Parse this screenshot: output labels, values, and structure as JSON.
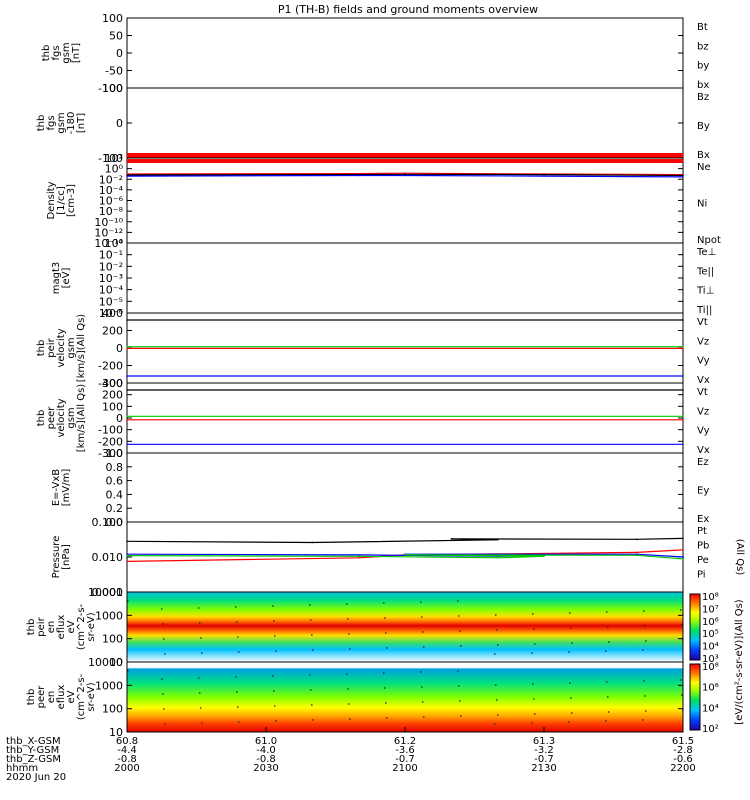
{
  "title": "P1 (TH-B) fields and ground moments overview",
  "x_axis": {
    "ticks": [
      "2000",
      "2030",
      "2100",
      "2130",
      "2200"
    ],
    "rows": [
      {
        "label": "thb_X-GSM",
        "values": [
          "60.8",
          "61.0",
          "61.2",
          "61.3",
          "61.5"
        ]
      },
      {
        "label": "thb_Y-GSM",
        "values": [
          "-4.4",
          "-4.0",
          "-3.6",
          "-3.2",
          "-2.8"
        ]
      },
      {
        "label": "thb_Z-GSM",
        "values": [
          "-0.8",
          "-0.8",
          "-0.7",
          "-0.7",
          "-0.6"
        ]
      },
      {
        "label": "hhmm",
        "values": [
          "2000",
          "2030",
          "2100",
          "2130",
          "2200"
        ]
      }
    ],
    "date": "2020 Jun 20"
  },
  "chart_data": [
    {
      "type": "line",
      "ylabel": [
        "thb",
        "fgs",
        "gsm",
        "[nT]"
      ],
      "yticks": [
        "100",
        "50",
        "0",
        "-50",
        "-100"
      ],
      "ylim": [
        -100,
        100
      ],
      "legend": [
        {
          "name": "Bt",
          "color": "#000000"
        },
        {
          "name": "bz",
          "color": "#ff0000"
        },
        {
          "name": "by",
          "color": "#00cc00"
        },
        {
          "name": "bx",
          "color": "#0000ff"
        }
      ],
      "series": []
    },
    {
      "type": "line",
      "ylabel": [
        "thb",
        "fgs",
        "gsm",
        "-180",
        "[nT]"
      ],
      "yticks": [
        "100",
        "0",
        "-100"
      ],
      "ylim": [
        -140,
        100
      ],
      "legend": [
        {
          "name": "Bz",
          "color": "#ff0000"
        },
        {
          "name": "By",
          "color": "#00cc00"
        },
        {
          "name": "Bx",
          "color": "#0000ff"
        }
      ],
      "series": []
    },
    {
      "type": "line",
      "ylabel": [
        "Density",
        "[1/cc]",
        "[cm-3]"
      ],
      "log": true,
      "yticks": [
        "10²",
        "10⁰",
        "10⁻²",
        "10⁻⁴",
        "10⁻⁶",
        "10⁻⁸",
        "10⁻¹⁰",
        "10⁻¹²",
        "10⁻¹⁴"
      ],
      "ylim_exp": [
        -15,
        3
      ],
      "legend": [
        {
          "name": "Ne",
          "color": "#ff0000"
        },
        {
          "name": "Ni",
          "color": "#000000"
        },
        {
          "name": "Npot",
          "color": "#0000ff"
        }
      ],
      "series": [
        {
          "name": "Ne",
          "color": "#ff0000",
          "x": [
            2000,
            2050,
            2100,
            2130,
            2200
          ],
          "y": [
            0.4,
            0.5,
            0.6,
            0.4,
            0.3
          ]
        },
        {
          "name": "Ni",
          "color": "#000000",
          "x": [
            2000,
            2050,
            2100,
            2130,
            2200
          ],
          "y": [
            0.25,
            0.3,
            0.35,
            0.3,
            0.2
          ]
        },
        {
          "name": "Npot",
          "color": "#0000ff",
          "x": [
            2000,
            2050,
            2100,
            2130,
            2200
          ],
          "y": [
            0.15,
            0.2,
            0.2,
            0.15,
            0.1
          ]
        }
      ]
    },
    {
      "type": "line",
      "ylabel": [
        "magt3",
        "[eV]"
      ],
      "log": true,
      "yticks": [
        "10⁰",
        "10⁻¹",
        "10⁻²",
        "10⁻³",
        "10⁻⁴",
        "10⁻⁵",
        "10⁻⁶"
      ],
      "ylim_exp": [
        -6.5,
        0
      ],
      "legend": [
        {
          "name": "Te⊥",
          "color": "#ff0000"
        },
        {
          "name": "Te||",
          "color": "#000000"
        },
        {
          "name": "Ti⊥",
          "color": "#0000ff"
        },
        {
          "name": "Ti||",
          "color": "#00cc00"
        }
      ],
      "series": []
    },
    {
      "type": "line",
      "ylabel": [
        "thb",
        "peir",
        "velocity",
        "gsm",
        "[km/s](All Qs)"
      ],
      "yticks": [
        "400",
        "200",
        "0",
        "-200",
        "-400"
      ],
      "ylim": [
        -400,
        400
      ],
      "legend": [
        {
          "name": "Vt",
          "color": "#000000"
        },
        {
          "name": "Vz",
          "color": "#ff0000"
        },
        {
          "name": "Vy",
          "color": "#00cc00"
        },
        {
          "name": "Vx",
          "color": "#0000ff"
        }
      ],
      "series": [
        {
          "name": "Vt",
          "color": "#000000",
          "x": [
            2000,
            2200
          ],
          "y": [
            320,
            320
          ]
        },
        {
          "name": "Vy",
          "color": "#00cc00",
          "x": [
            2000,
            2200
          ],
          "y": [
            15,
            15
          ]
        },
        {
          "name": "Vz",
          "color": "#ff0000",
          "x": [
            2000,
            2200
          ],
          "y": [
            -5,
            -5
          ]
        },
        {
          "name": "Vx",
          "color": "#0000ff",
          "x": [
            2000,
            2200
          ],
          "y": [
            -320,
            -320
          ]
        }
      ]
    },
    {
      "type": "line",
      "ylabel": [
        "thb",
        "peer",
        "velocity",
        "gsm",
        "[km/s](All Qs)"
      ],
      "yticks": [
        "300",
        "200",
        "100",
        "0",
        "-100",
        "-200",
        "-300"
      ],
      "ylim": [
        -300,
        300
      ],
      "legend": [
        {
          "name": "Vt",
          "color": "#000000"
        },
        {
          "name": "Vz",
          "color": "#ff0000"
        },
        {
          "name": "Vy",
          "color": "#00cc00"
        },
        {
          "name": "Vx",
          "color": "#0000ff"
        }
      ],
      "series": [
        {
          "name": "Vt",
          "color": "#000000",
          "x": [
            2000,
            2200
          ],
          "y": [
            240,
            240
          ]
        },
        {
          "name": "Vy",
          "color": "#00cc00",
          "x": [
            2000,
            2200
          ],
          "y": [
            15,
            15
          ]
        },
        {
          "name": "Vz",
          "color": "#ff0000",
          "x": [
            2000,
            2200
          ],
          "y": [
            -15,
            -15
          ]
        },
        {
          "name": "Vx",
          "color": "#0000ff",
          "x": [
            2000,
            2200
          ],
          "y": [
            -225,
            -225
          ]
        }
      ]
    },
    {
      "type": "line",
      "ylabel": [
        "E=-VxB",
        "[mV/m]"
      ],
      "yticks": [
        "1.0",
        "0.8",
        "0.6",
        "0.4",
        "0.2",
        "0.0"
      ],
      "ylim": [
        0,
        1
      ],
      "legend": [
        {
          "name": "Ez",
          "color": "#ff0000"
        },
        {
          "name": "Ey",
          "color": "#00cc00"
        },
        {
          "name": "Ex",
          "color": "#0000ff"
        }
      ],
      "series": []
    },
    {
      "type": "line",
      "ylabel": [
        "Pressure",
        "[nPa]"
      ],
      "log": true,
      "yticks": [
        "0.100",
        "0.010",
        "0.001"
      ],
      "ylim_exp": [
        -3,
        -1
      ],
      "legend": [
        {
          "name": "Pt",
          "color": "#000000"
        },
        {
          "name": "Pb",
          "color": "#ff0000"
        },
        {
          "name": "Pe",
          "color": "#00cc00"
        },
        {
          "name": "Pi",
          "color": "#0000ff"
        },
        {
          "name": "(All Qs)",
          "color": "#000000"
        }
      ],
      "series": [
        {
          "name": "Pt",
          "color": "#000000",
          "x": [
            2000,
            2040,
            2080,
            2110,
            2150,
            2200
          ],
          "y": [
            0.028,
            0.026,
            0.031,
            0.033,
            0.032,
            0.034
          ]
        },
        {
          "name": "Pb",
          "color": "#ff0000",
          "x": [
            2000,
            2050,
            2100,
            2150,
            2200
          ],
          "y": [
            0.0075,
            0.0095,
            0.0115,
            0.0135,
            0.016
          ]
        },
        {
          "name": "Pi",
          "color": "#0000ff",
          "x": [
            2000,
            2050,
            2080,
            2090,
            2100,
            2150,
            2160,
            2200
          ],
          "y": [
            0.012,
            0.0115,
            0.0105,
            0.011,
            0.012,
            0.012,
            0.01,
            0.0095
          ]
        },
        {
          "name": "Pe",
          "color": "#00cc00",
          "x": [
            2000,
            2050,
            2080,
            2090,
            2100,
            2150,
            2160,
            2200
          ],
          "y": [
            0.011,
            0.0105,
            0.0095,
            0.0105,
            0.0115,
            0.0112,
            0.0088,
            0.0085
          ]
        }
      ]
    },
    {
      "type": "heatmap",
      "ylabel": [
        "thb",
        "peir",
        "en",
        "eflux",
        "eV",
        "(cm^2-s-",
        "sr-eV)"
      ],
      "yticks": [
        "10000",
        "1000",
        "100",
        "10"
      ],
      "ylim": [
        5,
        20000
      ],
      "colorbar_ticks": [
        "10⁸",
        "10⁷",
        "10⁶",
        "10⁵",
        "10⁴",
        "10³"
      ],
      "colorbar_label": "[eV/(cm²-s-sr-eV)](All Qs)"
    },
    {
      "type": "heatmap",
      "ylabel": [
        "thb",
        "peer",
        "en",
        "eflux",
        "eV",
        "(cm^2-s-",
        "sr-eV)"
      ],
      "yticks": [
        "10000",
        "1000",
        "100",
        "10"
      ],
      "ylim": [
        5,
        20000
      ],
      "colorbar_ticks": [
        "10⁸",
        "10⁶",
        "10⁴",
        "10²"
      ],
      "colorbar_label": "[eV/(cm²-s-sr-eV)](All Qs)"
    }
  ]
}
